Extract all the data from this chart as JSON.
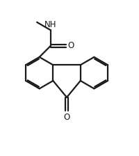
{
  "background": "#ffffff",
  "line_color": "#1a1a1a",
  "line_width": 1.6,
  "figsize": [
    2.0,
    2.24
  ],
  "dpi": 100,
  "xlim": [
    0,
    10
  ],
  "ylim": [
    0,
    11.2
  ]
}
